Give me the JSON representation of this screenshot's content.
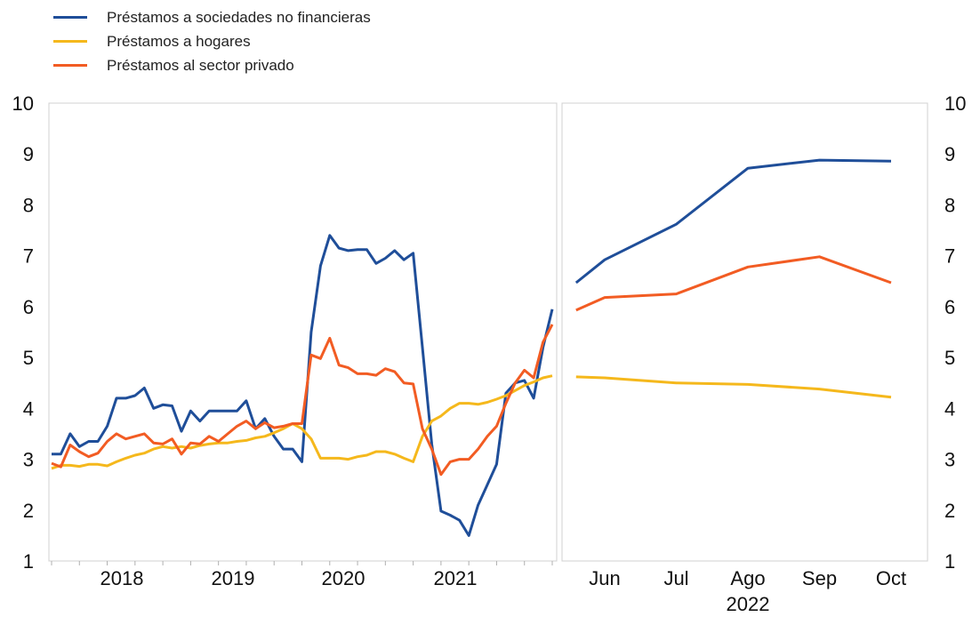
{
  "chart_data": {
    "type": "line",
    "title": "",
    "colors": {
      "nfc": "#1f4e99",
      "households": "#f5b81c",
      "private": "#f25c23"
    },
    "legend_position": "top-left",
    "legend": [
      {
        "key": "nfc",
        "label": "Préstamos a sociedades no financieras"
      },
      {
        "key": "households",
        "label": "Préstamos a hogares"
      },
      {
        "key": "private",
        "label": "Préstamos al sector privado"
      }
    ],
    "y_axis": {
      "min": 1,
      "max": 10,
      "ticks": [
        "1",
        "2",
        "3",
        "4",
        "5",
        "6",
        "7",
        "8",
        "9",
        "10"
      ],
      "position": "left and right"
    },
    "grid": false,
    "panels": [
      {
        "name": "historical",
        "x_ticks": [
          "2018",
          "2019",
          "2020",
          "2021"
        ],
        "series": [
          {
            "key": "nfc",
            "values": [
              3.1,
              3.1,
              3.5,
              3.25,
              3.35,
              3.35,
              3.65,
              4.2,
              4.2,
              4.25,
              4.4,
              4.0,
              4.07,
              4.05,
              3.55,
              3.95,
              3.75,
              3.95,
              3.95,
              3.95,
              3.95,
              4.15,
              3.6,
              3.8,
              3.45,
              3.2,
              3.2,
              2.95,
              5.5,
              6.8,
              7.4,
              7.15,
              7.1,
              7.12,
              7.12,
              6.85,
              6.95,
              7.1,
              6.92,
              7.05,
              5.2,
              3.3,
              1.98,
              1.9,
              1.8,
              1.5,
              2.1,
              2.5,
              2.9,
              4.3,
              4.5,
              4.55,
              4.2,
              5.2,
              5.95
            ]
          },
          {
            "key": "households",
            "values": [
              2.82,
              2.88,
              2.88,
              2.86,
              2.9,
              2.9,
              2.87,
              2.95,
              3.02,
              3.08,
              3.12,
              3.2,
              3.25,
              3.22,
              3.25,
              3.22,
              3.27,
              3.3,
              3.32,
              3.32,
              3.35,
              3.37,
              3.42,
              3.45,
              3.52,
              3.6,
              3.7,
              3.6,
              3.4,
              3.02,
              3.02,
              3.02,
              3.0,
              3.05,
              3.08,
              3.15,
              3.15,
              3.1,
              3.02,
              2.95,
              3.45,
              3.75,
              3.85,
              4.0,
              4.1,
              4.1,
              4.08,
              4.12,
              4.18,
              4.25,
              4.35,
              4.45,
              4.52,
              4.6,
              4.64
            ]
          },
          {
            "key": "private",
            "values": [
              2.92,
              2.85,
              3.28,
              3.15,
              3.05,
              3.12,
              3.35,
              3.5,
              3.4,
              3.45,
              3.5,
              3.32,
              3.3,
              3.4,
              3.1,
              3.32,
              3.3,
              3.45,
              3.35,
              3.5,
              3.65,
              3.75,
              3.6,
              3.72,
              3.62,
              3.65,
              3.7,
              3.7,
              5.05,
              4.98,
              5.38,
              4.85,
              4.8,
              4.68,
              4.68,
              4.65,
              4.78,
              4.72,
              4.5,
              4.48,
              3.6,
              3.2,
              2.7,
              2.95,
              3.0,
              3.0,
              3.2,
              3.45,
              3.65,
              4.1,
              4.5,
              4.75,
              4.6,
              5.3,
              5.65
            ]
          }
        ]
      },
      {
        "name": "2022",
        "x_ticks": [
          "Jun",
          "Jul",
          "Ago",
          "Sep",
          "Oct"
        ],
        "x_title": "2022",
        "x_positions": [
          -0.4,
          0,
          1,
          2,
          3,
          4
        ],
        "series": [
          {
            "key": "nfc",
            "values": [
              6.47,
              6.92,
              7.62,
              8.72,
              8.88,
              8.86
            ]
          },
          {
            "key": "households",
            "values": [
              4.62,
              4.6,
              4.5,
              4.47,
              4.38,
              4.22
            ]
          },
          {
            "key": "private",
            "values": [
              5.93,
              6.18,
              6.25,
              6.78,
              6.98,
              6.47
            ]
          }
        ]
      }
    ]
  }
}
